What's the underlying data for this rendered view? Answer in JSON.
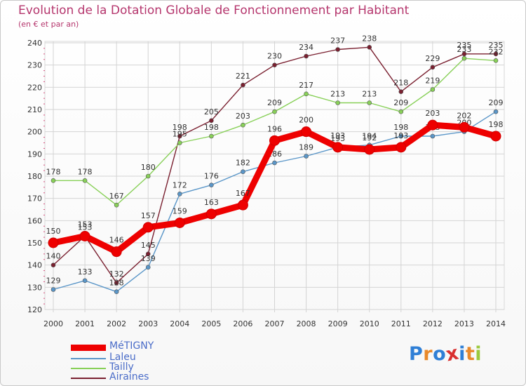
{
  "title": "Evolution de la Dotation Globale de Fonctionnement par Habitant",
  "subtitle": "(en € et par an)",
  "chart_data": {
    "type": "line",
    "x": [
      "2000",
      "2001",
      "2002",
      "2003",
      "2004",
      "2005",
      "2006",
      "2007",
      "2008",
      "2009",
      "2010",
      "2011",
      "2012",
      "2013",
      "2014"
    ],
    "ylim": [
      120,
      240
    ],
    "yticks": [
      120,
      130,
      140,
      150,
      160,
      170,
      180,
      190,
      200,
      210,
      220,
      230,
      240
    ],
    "grid": true,
    "legend_position": "bottom-left",
    "series": [
      {
        "name": "Airaines",
        "color": "#7a2030",
        "values": [
          140,
          153,
          132,
          145,
          198,
          205,
          221,
          230,
          234,
          237,
          238,
          218,
          229,
          235,
          235
        ]
      },
      {
        "name": "Tailly",
        "color": "#88d058",
        "values": [
          178,
          178,
          167,
          180,
          195,
          198,
          203,
          209,
          217,
          213,
          213,
          209,
          219,
          233,
          232
        ]
      },
      {
        "name": "Laleu",
        "color": "#5a96c8",
        "values": [
          129,
          133,
          128,
          139,
          172,
          176,
          182,
          186,
          189,
          193,
          194,
          198,
          198,
          200,
          209
        ]
      },
      {
        "name": "MéTIGNY",
        "color": "#ee0000",
        "values": [
          150,
          153,
          146,
          157,
          159,
          163,
          167,
          196,
          200,
          193,
          192,
          193,
          203,
          202,
          198
        ]
      }
    ],
    "legend_order": [
      "MéTIGNY",
      "Laleu",
      "Tailly",
      "Airaines"
    ]
  },
  "logo": {
    "text": "Proxiti",
    "letters": [
      "P",
      "r",
      "o",
      "x",
      "i",
      "t",
      "i"
    ],
    "colors": [
      "#2f7fd6",
      "#e9892a",
      "#2f7fd6",
      "#d93030",
      "#2f7fd6",
      "#e9892a",
      "#9bc93c"
    ]
  }
}
